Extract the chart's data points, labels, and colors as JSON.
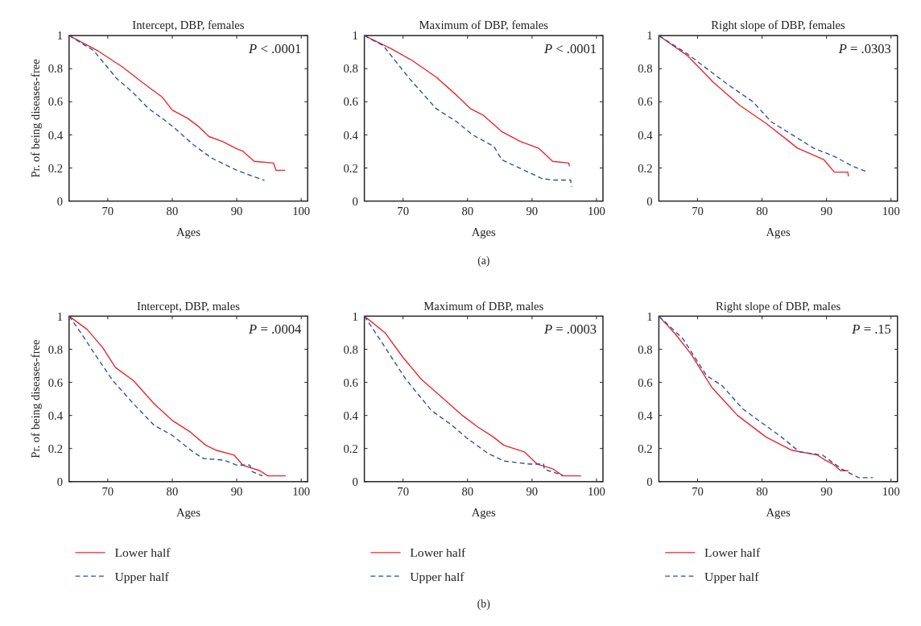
{
  "chart_data": [
    {
      "type": "line",
      "title": "Intercept, DBP, females",
      "xlabel": "Ages",
      "ylabel": "Pr. of being diseases-free",
      "xlim": [
        64,
        101
      ],
      "ylim": [
        0,
        1
      ],
      "xticks": [
        70,
        80,
        90,
        100
      ],
      "yticks": [
        0,
        0.2,
        0.4,
        0.6,
        0.8,
        1
      ],
      "legend": false,
      "annotations": [
        "P < .0001"
      ],
      "series": [
        {
          "color": "#e8262a",
          "line_style": "solid",
          "x": [
            64,
            68.6,
            72.3,
            75.6,
            78.4,
            80,
            82.4,
            84.1,
            85.7,
            87.8,
            89.8,
            91,
            92.7,
            95.7,
            96.1,
            97.5
          ],
          "values": [
            1,
            0.905,
            0.81,
            0.71,
            0.63,
            0.55,
            0.5,
            0.45,
            0.39,
            0.36,
            0.32,
            0.3,
            0.24,
            0.23,
            0.186,
            0.186
          ]
        },
        {
          "color": "#2e4fa6",
          "line_style": "dashed",
          "x": [
            64,
            67.8,
            71.4,
            73.8,
            76.3,
            78.8,
            80.4,
            83.3,
            86.1,
            89.8,
            91.8,
            94.3
          ],
          "values": [
            1,
            0.91,
            0.74,
            0.66,
            0.56,
            0.49,
            0.44,
            0.34,
            0.26,
            0.19,
            0.16,
            0.125
          ]
        }
      ]
    },
    {
      "type": "line",
      "title": "Maximum of DBP, females",
      "xlabel": "Ages",
      "xlim": [
        64,
        101
      ],
      "ylim": [
        0,
        1
      ],
      "xticks": [
        70,
        80,
        90,
        100
      ],
      "yticks": [
        0,
        0.2,
        0.4,
        0.6,
        0.8,
        1
      ],
      "legend": false,
      "annotations": [
        "P < .0001",
        "(a)"
      ],
      "series": [
        {
          "color": "#e8262a",
          "line_style": "solid",
          "x": [
            64,
            68.2,
            71.4,
            75.1,
            78.3,
            80.4,
            82.4,
            85.3,
            88.2,
            91,
            93.2,
            95.7,
            95.8
          ],
          "values": [
            1,
            0.92,
            0.85,
            0.75,
            0.64,
            0.56,
            0.52,
            0.42,
            0.36,
            0.32,
            0.24,
            0.23,
            0.21
          ]
        },
        {
          "color": "#2e4fa6",
          "line_style": "dashed",
          "x": [
            64,
            66.9,
            71,
            75.1,
            78.3,
            80.8,
            84.1,
            85.3,
            88.6,
            91.6,
            93.5,
            96,
            96.1
          ],
          "values": [
            1,
            0.94,
            0.74,
            0.56,
            0.48,
            0.4,
            0.33,
            0.25,
            0.19,
            0.135,
            0.127,
            0.127,
            0.087
          ]
        }
      ]
    },
    {
      "type": "line",
      "title": "Right slope of DBP, females",
      "xlabel": "Ages",
      "xlim": [
        64,
        101
      ],
      "ylim": [
        0,
        1
      ],
      "xticks": [
        70,
        80,
        90,
        100
      ],
      "yticks": [
        0,
        0.2,
        0.4,
        0.6,
        0.8,
        1
      ],
      "legend": false,
      "annotations": [
        "P = .0303"
      ],
      "series": [
        {
          "color": "#e8262a",
          "line_style": "solid",
          "x": [
            64,
            68.4,
            72.4,
            76.5,
            80.6,
            83.9,
            85.5,
            89.6,
            91.2,
            93.3,
            93.4
          ],
          "values": [
            1,
            0.88,
            0.72,
            0.58,
            0.47,
            0.37,
            0.32,
            0.25,
            0.175,
            0.175,
            0.15
          ]
        },
        {
          "color": "#2e4fa6",
          "line_style": "dashed",
          "x": [
            64,
            68.4,
            74.5,
            78.6,
            81.4,
            84.7,
            88,
            91.2,
            94.1,
            96.1
          ],
          "values": [
            1,
            0.89,
            0.71,
            0.6,
            0.48,
            0.4,
            0.32,
            0.27,
            0.21,
            0.18
          ]
        }
      ]
    },
    {
      "type": "line",
      "title": "Intercept, DBP, males",
      "xlabel": "Ages",
      "ylabel": "Pr. of being diseases-free",
      "xlim": [
        64,
        101
      ],
      "ylim": [
        0,
        1
      ],
      "xticks": [
        70,
        80,
        90,
        100
      ],
      "yticks": [
        0,
        0.2,
        0.4,
        0.6,
        0.8,
        1
      ],
      "legend": "bottom",
      "annotations": [
        "P = .0004"
      ],
      "series": [
        {
          "name": "Lower half",
          "color": "#e8262a",
          "line_style": "solid",
          "x": [
            64,
            66.8,
            69.2,
            71.2,
            74,
            77.2,
            80,
            82.8,
            85.2,
            86.8,
            89.6,
            91,
            93.6,
            94.8,
            97.6
          ],
          "values": [
            1,
            0.92,
            0.81,
            0.69,
            0.61,
            0.47,
            0.37,
            0.3,
            0.22,
            0.19,
            0.16,
            0.098,
            0.066,
            0.035,
            0.035
          ]
        },
        {
          "name": "Upper half",
          "color": "#2e4fa6",
          "line_style": "dashed",
          "x": [
            64,
            66,
            68,
            70.8,
            74,
            77.2,
            80,
            83.2,
            84.8,
            88,
            90,
            92,
            92.4,
            94
          ],
          "values": [
            1,
            0.89,
            0.77,
            0.61,
            0.47,
            0.34,
            0.28,
            0.18,
            0.14,
            0.13,
            0.1,
            0.1,
            0.06,
            0.035
          ]
        }
      ]
    },
    {
      "type": "line",
      "title": "Maximum of DBP, males",
      "xlabel": "Ages",
      "xlim": [
        64,
        101
      ],
      "ylim": [
        0,
        1
      ],
      "xticks": [
        70,
        80,
        90,
        100
      ],
      "yticks": [
        0,
        0.2,
        0.4,
        0.6,
        0.8,
        1
      ],
      "legend": "bottom",
      "annotations": [
        "P = .0003",
        "(b)"
      ],
      "series": [
        {
          "name": "Lower half",
          "color": "#e8262a",
          "line_style": "solid",
          "x": [
            64,
            67.2,
            70,
            72.8,
            76,
            79.2,
            81.6,
            84,
            85.6,
            88.8,
            90.8,
            93.2,
            94.8,
            97.6
          ],
          "values": [
            1,
            0.9,
            0.75,
            0.62,
            0.51,
            0.4,
            0.33,
            0.27,
            0.22,
            0.18,
            0.106,
            0.078,
            0.035,
            0.035
          ]
        },
        {
          "name": "Upper half",
          "color": "#2e4fa6",
          "line_style": "dashed",
          "x": [
            64,
            66.4,
            70.4,
            74.4,
            77.6,
            80,
            83.2,
            85.6,
            89.6,
            91.8,
            91.9,
            94.4,
            94.8
          ],
          "values": [
            1,
            0.86,
            0.62,
            0.43,
            0.34,
            0.26,
            0.17,
            0.125,
            0.106,
            0.106,
            0.074,
            0.043,
            0.035
          ]
        }
      ]
    },
    {
      "type": "line",
      "title": "Right slope of DBP, males",
      "xlabel": "Ages",
      "xlim": [
        64,
        101
      ],
      "ylim": [
        0,
        1
      ],
      "xticks": [
        70,
        80,
        90,
        100
      ],
      "yticks": [
        0,
        0.2,
        0.4,
        0.6,
        0.8,
        1
      ],
      "legend": "bottom",
      "annotations": [
        "P = .15"
      ],
      "series": [
        {
          "name": "Lower half",
          "color": "#e8262a",
          "line_style": "solid",
          "x": [
            64,
            66.6,
            69,
            72.2,
            76.2,
            80.6,
            84.6,
            88.6,
            89.8,
            91,
            92.2,
            93.4
          ],
          "values": [
            1,
            0.89,
            0.77,
            0.57,
            0.4,
            0.27,
            0.19,
            0.16,
            0.13,
            0.106,
            0.066,
            0.066
          ]
        },
        {
          "name": "Upper half",
          "color": "#2e4fa6",
          "line_style": "dashed",
          "x": [
            64,
            67.8,
            71.4,
            73.8,
            77,
            79.8,
            83,
            85.8,
            89.4,
            92.2,
            93.8,
            95,
            97.2
          ],
          "values": [
            1,
            0.86,
            0.64,
            0.58,
            0.44,
            0.36,
            0.27,
            0.18,
            0.16,
            0.08,
            0.047,
            0.024,
            0.024
          ]
        }
      ]
    }
  ]
}
